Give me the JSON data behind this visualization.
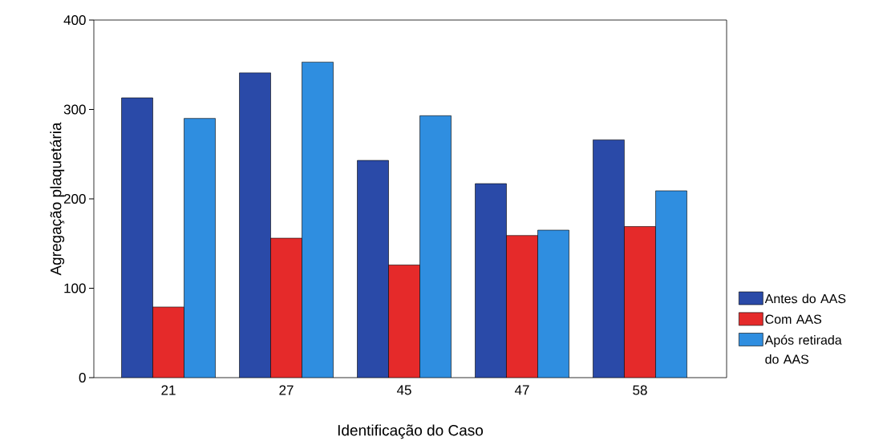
{
  "chart_data": {
    "type": "bar",
    "xlabel": "Identificação do Caso",
    "ylabel": "Agregação plaquetária",
    "categories": [
      "21",
      "27",
      "45",
      "47",
      "58"
    ],
    "series": [
      {
        "name": "Antes do AAS",
        "color": "#2a4aa8",
        "values": [
          313,
          341,
          243,
          217,
          266
        ]
      },
      {
        "name": "Com AAS",
        "color": "#e52a2a",
        "values": [
          79,
          156,
          126,
          159,
          169
        ]
      },
      {
        "name": "Após retirada do AAS",
        "color": "#2f8ee0",
        "values": [
          290,
          353,
          293,
          165,
          209
        ]
      }
    ],
    "ylim": [
      0,
      400
    ],
    "yticks": [
      0,
      100,
      200,
      300,
      400
    ],
    "grid": false,
    "legend": "right"
  }
}
